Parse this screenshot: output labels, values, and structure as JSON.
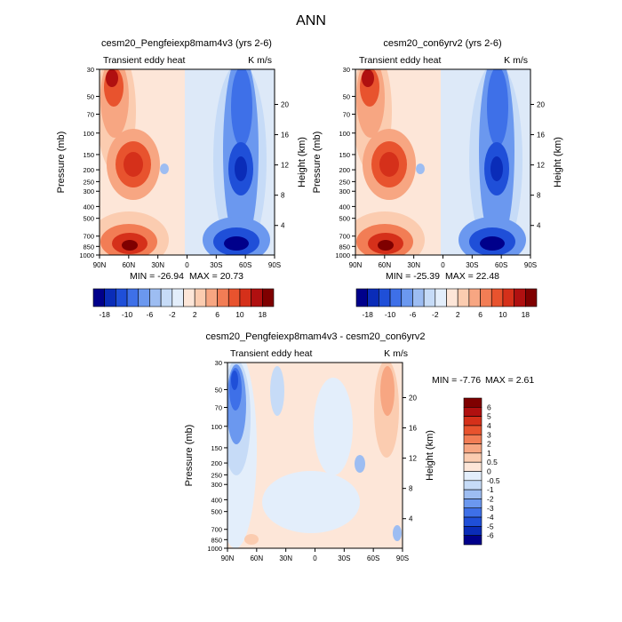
{
  "figure": {
    "title": "ANN"
  },
  "chart_data": [
    {
      "type": "heatmap",
      "title": "cesm20_Pengfeiexp8mam4v3 (yrs 2-6)",
      "subtitle_left": "Transient eddy heat",
      "subtitle_right": "K m/s",
      "xlabel": "",
      "ylabel": "Pressure (mb)",
      "ylabel_right": "Height (km)",
      "x_ticks": [
        "90N",
        "60N",
        "30N",
        "0",
        "30S",
        "60S",
        "90S"
      ],
      "y_ticks": [
        "30",
        "50",
        "70",
        "100",
        "150",
        "200",
        "250",
        "300",
        "400",
        "500",
        "700",
        "850",
        "1000"
      ],
      "y_right_ticks": [
        "20",
        "16",
        "12",
        "8",
        "4"
      ],
      "ylim": [
        1000,
        30
      ],
      "min_label": "MIN = -26.94",
      "max_label": "MAX =  20.73",
      "min": -26.94,
      "max": 20.73,
      "grid": false
    },
    {
      "type": "heatmap",
      "title": "cesm20_con6yrv2 (yrs 2-6)",
      "subtitle_left": "Transient eddy heat",
      "subtitle_right": "K m/s",
      "xlabel": "",
      "ylabel": "Pressure (mb)",
      "ylabel_right": "Height (km)",
      "x_ticks": [
        "90N",
        "60N",
        "30N",
        "0",
        "30S",
        "60S",
        "90S"
      ],
      "y_ticks": [
        "30",
        "50",
        "70",
        "100",
        "150",
        "200",
        "250",
        "300",
        "400",
        "500",
        "700",
        "850",
        "1000"
      ],
      "y_right_ticks": [
        "20",
        "16",
        "12",
        "8",
        "4"
      ],
      "ylim": [
        1000,
        30
      ],
      "min_label": "MIN = -25.39",
      "max_label": "MAX =  22.48",
      "min": -25.39,
      "max": 22.48,
      "grid": false
    },
    {
      "type": "heatmap",
      "title": "cesm20_Pengfeiexp8mam4v3 - cesm20_con6yrv2",
      "subtitle_left": "Transient eddy heat",
      "subtitle_right": "K m/s",
      "xlabel": "",
      "ylabel": "Pressure (mb)",
      "ylabel_right": "Height (km)",
      "x_ticks": [
        "90N",
        "60N",
        "30N",
        "0",
        "30S",
        "60S",
        "90S"
      ],
      "y_ticks": [
        "30",
        "50",
        "70",
        "100",
        "150",
        "200",
        "250",
        "300",
        "400",
        "500",
        "700",
        "850",
        "1000"
      ],
      "y_right_ticks": [
        "20",
        "16",
        "12",
        "8",
        "4"
      ],
      "ylim": [
        1000,
        30
      ],
      "min_label": "MIN = -7.76",
      "max_label": "MAX =   2.61",
      "min": -7.76,
      "max": 2.61,
      "grid": false
    }
  ],
  "colorbars": {
    "main": {
      "labels": [
        "-18",
        "-10",
        "-6",
        "-2",
        "2",
        "6",
        "10",
        "18"
      ],
      "colors": [
        "#00008b",
        "#0a2cb8",
        "#1f4fd8",
        "#3e70e8",
        "#6b98ef",
        "#9dbdf2",
        "#c6dbf7",
        "#e3eefb",
        "#fde6d8",
        "#fbccb0",
        "#f7a682",
        "#f27d55",
        "#e8532e",
        "#d5301a",
        "#b01010",
        "#7f0000"
      ]
    },
    "diff": {
      "labels": [
        "6",
        "5",
        "4",
        "3",
        "2",
        "1",
        "0.5",
        "0",
        "-0.5",
        "-1",
        "-2",
        "-3",
        "-4",
        "-5",
        "-6"
      ],
      "colors": [
        "#7f0000",
        "#b01010",
        "#d5301a",
        "#e8532e",
        "#f27d55",
        "#f7a682",
        "#fbccb0",
        "#fde6d8",
        "#e3eefb",
        "#c6dbf7",
        "#9dbdf2",
        "#6b98ef",
        "#3e70e8",
        "#1f4fd8",
        "#0a2cb8",
        "#00008b"
      ]
    }
  }
}
